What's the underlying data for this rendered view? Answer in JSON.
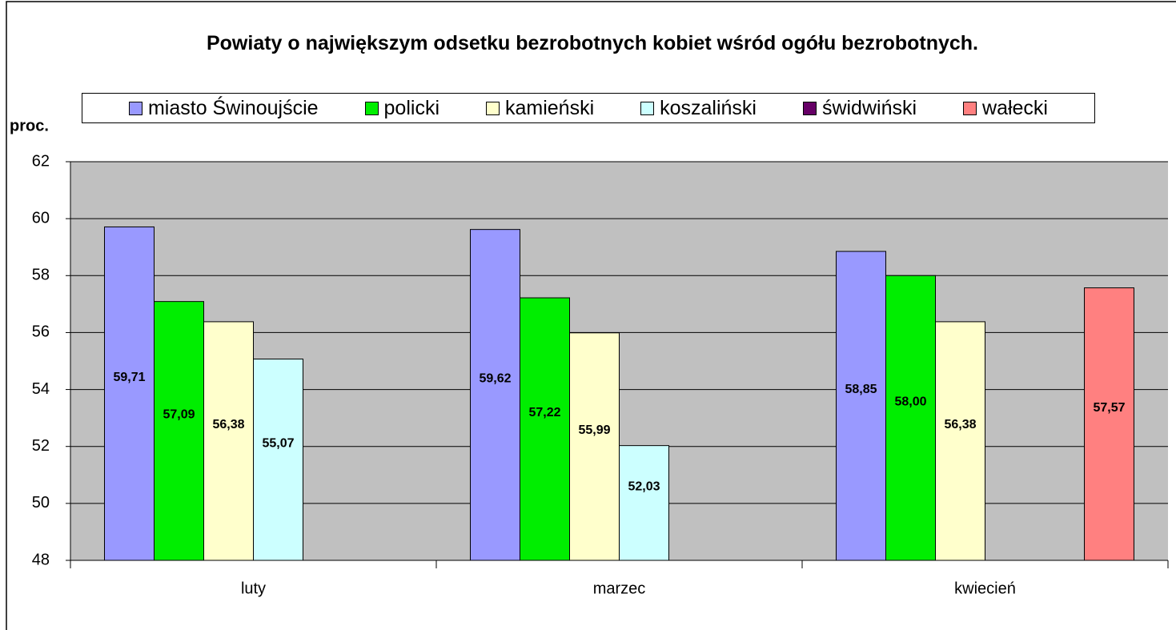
{
  "chart_data": {
    "type": "bar",
    "title": "Powiaty o największym odsetku bezrobotnych kobiet wśród ogółu bezrobotnych.",
    "y_label": "proc.",
    "categories": [
      "luty",
      "marzec",
      "kwiecień"
    ],
    "series": [
      {
        "name": "miasto Świnoujście",
        "color": "#9999ff",
        "values": [
          59.71,
          59.62,
          58.85
        ],
        "value_labels": [
          "59,71",
          "59,62",
          "58,85"
        ]
      },
      {
        "name": "policki",
        "color": "#00ee00",
        "values": [
          57.09,
          57.22,
          58.0
        ],
        "value_labels": [
          "57,09",
          "57,22",
          "58,00"
        ]
      },
      {
        "name": "kamieński",
        "color": "#ffffcc",
        "values": [
          56.38,
          55.99,
          56.38
        ],
        "value_labels": [
          "56,38",
          "55,99",
          "56,38"
        ]
      },
      {
        "name": "koszaliński",
        "color": "#ccffff",
        "values": [
          55.07,
          52.03,
          null
        ],
        "value_labels": [
          "55,07",
          "52,03",
          null
        ]
      },
      {
        "name": "świdwiński",
        "color": "#660066",
        "values": [
          null,
          null,
          null
        ],
        "value_labels": [
          null,
          null,
          null
        ]
      },
      {
        "name": "wałecki",
        "color": "#ff8080",
        "values": [
          null,
          null,
          57.57
        ],
        "value_labels": [
          null,
          null,
          "57,57"
        ]
      }
    ],
    "ylim": [
      48,
      62
    ],
    "yticks": [
      48,
      50,
      52,
      54,
      56,
      58,
      60,
      62
    ],
    "grid": true
  }
}
